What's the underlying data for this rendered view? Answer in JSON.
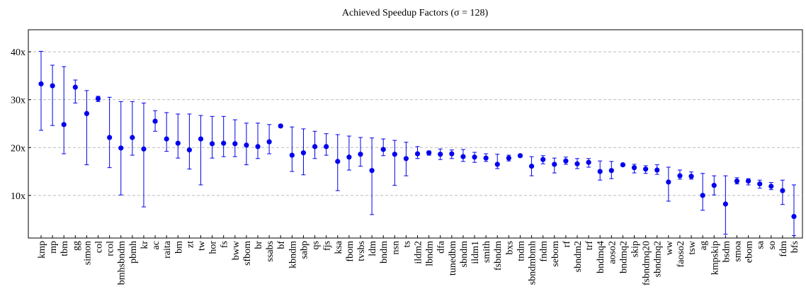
{
  "chart_data": {
    "type": "errorbar",
    "title": "Achieved Speedup Factors (σ = 128)",
    "categories": [
      "kmp",
      "mp",
      "tbm",
      "gg",
      "simon",
      "col",
      "rcol",
      "bmhsbndm",
      "pbmh",
      "kr",
      "ac",
      "raita",
      "bm",
      "zt",
      "tw",
      "hor",
      "fs",
      "bww",
      "sfbom",
      "br",
      "ssabs",
      "bf",
      "kbndm",
      "sabp",
      "qs",
      "fjs",
      "ksa",
      "fbom",
      "tvsbs",
      "ldm",
      "bndm",
      "nsn",
      "ts",
      "ildm2",
      "lbndm",
      "dfa",
      "tunedbm",
      "sbndm",
      "ildm1",
      "smith",
      "fsbndm",
      "bxs",
      "tndm",
      "sbndmbmh",
      "fndm",
      "sebom",
      "rf",
      "sbndm2",
      "trf",
      "bndmq4",
      "aoso2",
      "bndmq2",
      "skip",
      "fsbndmq20",
      "sbndmq2",
      "ww",
      "faoso2",
      "tsw",
      "ag",
      "kmpskip",
      "bsdm",
      "smoa",
      "ebom",
      "sa",
      "so",
      "fdm",
      "bfs"
    ],
    "values": [
      33.3,
      32.9,
      24.8,
      32.6,
      27.1,
      30.2,
      22.1,
      19.9,
      22.1,
      19.7,
      25.5,
      21.8,
      20.9,
      19.5,
      21.8,
      20.8,
      20.9,
      20.8,
      20.5,
      20.2,
      21.2,
      24.5,
      18.4,
      18.9,
      20.2,
      20.2,
      17.1,
      18.0,
      18.6,
      15.2,
      19.6,
      18.6,
      17.7,
      18.7,
      18.9,
      18.6,
      18.7,
      18.1,
      18.0,
      17.8,
      16.5,
      17.8,
      18.3,
      16.1,
      17.5,
      16.5,
      17.2,
      16.6,
      16.9,
      15.0,
      15.2,
      16.4,
      15.8,
      15.5,
      15.3,
      12.8,
      14.1,
      14.0,
      10.0,
      12.1,
      8.2,
      13.0,
      13.0,
      12.4,
      11.9,
      11.0,
      5.6
    ],
    "lower": [
      23.6,
      24.6,
      18.7,
      29.3,
      16.4,
      29.6,
      15.8,
      10.1,
      18.4,
      7.6,
      23.4,
      19.2,
      17.8,
      15.5,
      12.2,
      17.8,
      18.1,
      18.1,
      16.4,
      17.7,
      18.7,
      24.2,
      15.0,
      14.3,
      17.7,
      18.4,
      11.0,
      15.3,
      16.1,
      6.0,
      18.3,
      12.1,
      14.1,
      17.7,
      18.4,
      17.5,
      17.7,
      17.1,
      16.9,
      17.1,
      15.6,
      17.2,
      18.0,
      14.1,
      16.6,
      14.7,
      16.5,
      15.6,
      15.9,
      13.2,
      13.5,
      16.1,
      14.7,
      14.6,
      14.4,
      8.8,
      13.4,
      13.4,
      6.9,
      10.1,
      1.9,
      12.4,
      12.2,
      11.5,
      11.2,
      8.1,
      1.6
    ],
    "upper": [
      40.1,
      37.2,
      36.9,
      34.1,
      31.9,
      30.7,
      30.5,
      29.6,
      29.6,
      29.3,
      27.7,
      27.3,
      27.0,
      27.0,
      26.7,
      26.5,
      26.5,
      25.8,
      25.1,
      25.1,
      24.8,
      24.8,
      24.3,
      23.9,
      23.4,
      22.9,
      22.7,
      22.4,
      22.1,
      22.0,
      21.8,
      21.5,
      21.1,
      20.2,
      19.3,
      19.7,
      19.5,
      19.6,
      19.0,
      18.7,
      18.6,
      18.4,
      18.6,
      18.1,
      18.3,
      17.8,
      18.0,
      17.7,
      17.7,
      17.2,
      17.1,
      16.5,
      16.5,
      16.2,
      16.4,
      15.9,
      15.3,
      14.9,
      14.6,
      14.1,
      14.1,
      13.7,
      13.5,
      13.2,
      12.7,
      13.2,
      12.2
    ],
    "color": "#0000ee",
    "ylim": [
      1.1,
      44.6
    ],
    "yticks": [
      {
        "value": 10,
        "label": "10x"
      },
      {
        "value": 20,
        "label": "20x"
      },
      {
        "value": 30,
        "label": "30x"
      },
      {
        "value": 40,
        "label": "40x"
      }
    ],
    "grid": true
  }
}
